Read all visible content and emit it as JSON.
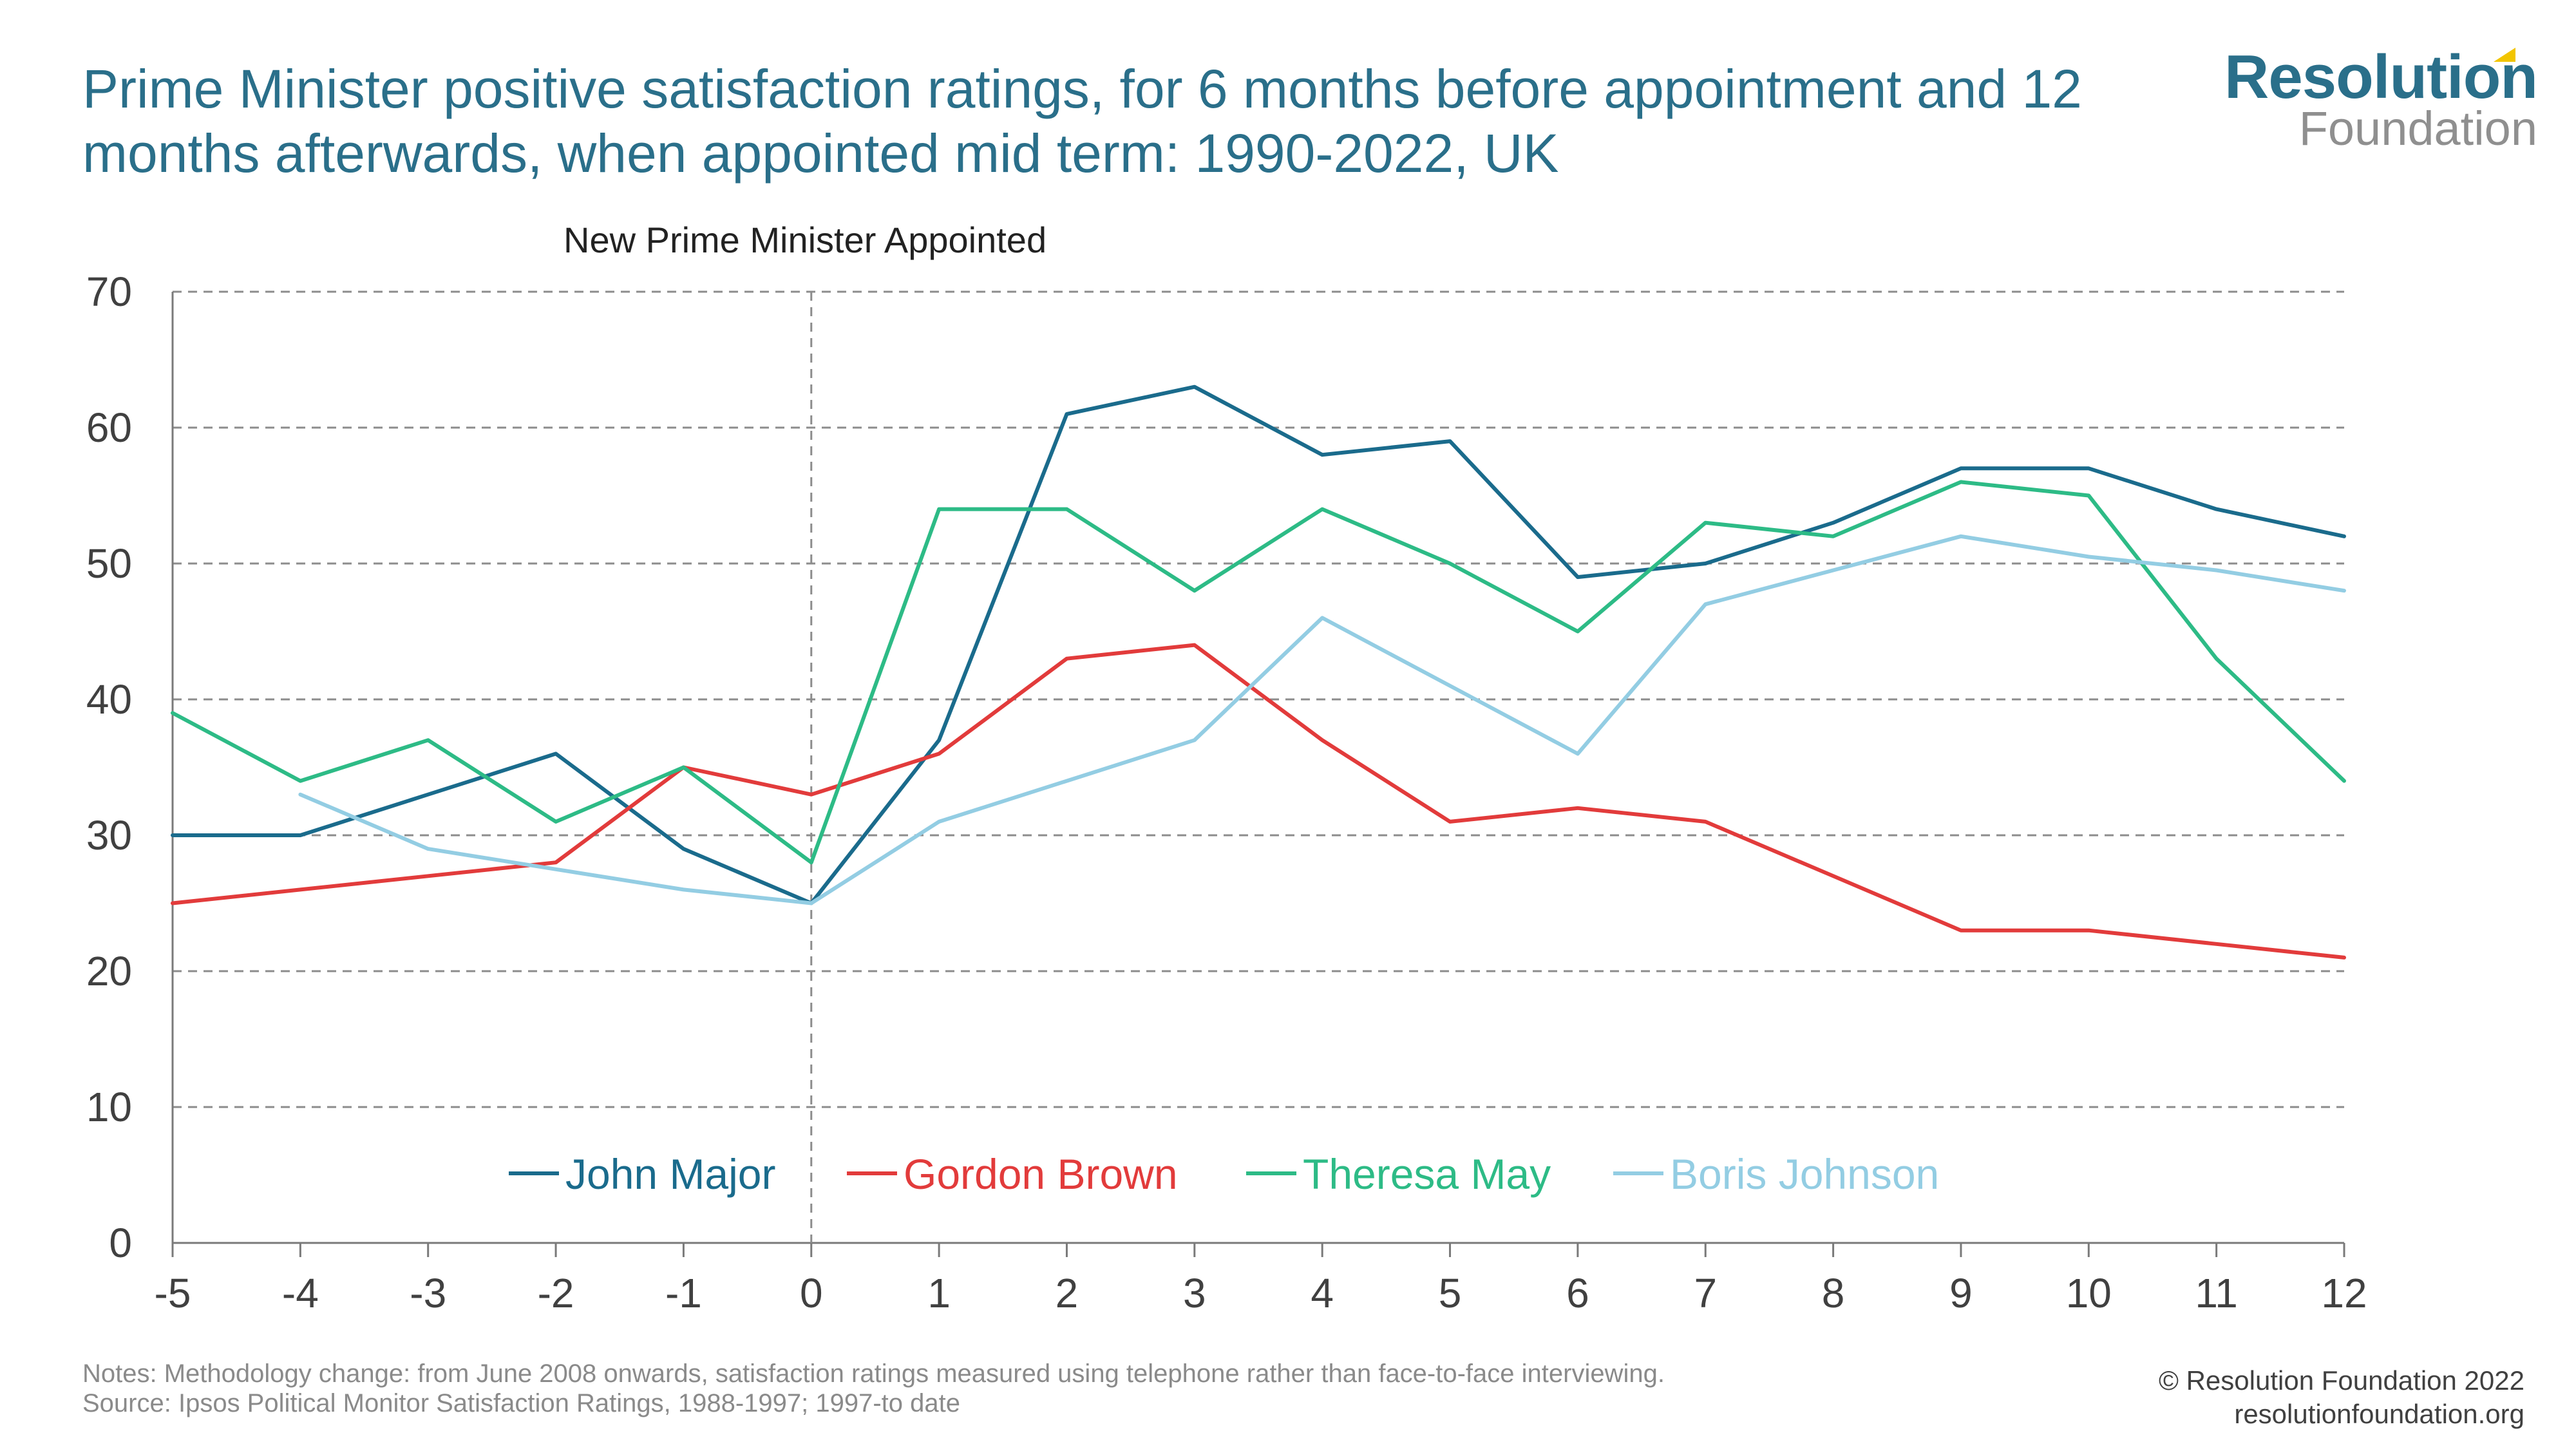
{
  "header": {
    "title_line1": "Prime Minister positive satisfaction ratings, for 6 months before appointment and 12",
    "title_line2": "months afterwards, when appointed mid term: 1990-2022, UK"
  },
  "logo": {
    "main": "Resolution",
    "sub": "Foundation"
  },
  "chart_data": {
    "type": "line",
    "annotation": "New Prime Minister Appointed",
    "annotation_x": 0,
    "x": [
      -5,
      -4,
      -3,
      -2,
      -1,
      0,
      1,
      2,
      3,
      4,
      5,
      6,
      7,
      8,
      9,
      10,
      11,
      12
    ],
    "xlim": [
      -5,
      12
    ],
    "ylim": [
      0,
      70
    ],
    "yticks": [
      0,
      10,
      20,
      30,
      40,
      50,
      60,
      70
    ],
    "grid": true,
    "legend_position": "bottom-left",
    "series": [
      {
        "name": "John Major",
        "color": "#1a6b8c",
        "values": [
          30,
          30,
          33,
          36,
          29,
          25,
          37,
          61,
          63,
          58,
          59,
          49,
          50,
          53,
          57,
          57,
          54,
          52
        ]
      },
      {
        "name": "Gordon Brown",
        "color": "#e23b3b",
        "values": [
          25,
          26,
          27,
          28,
          35,
          33,
          36,
          43,
          44,
          37,
          31,
          32,
          31,
          27,
          23,
          23,
          22,
          21
        ]
      },
      {
        "name": "Theresa May",
        "color": "#2dbb86",
        "values": [
          39,
          34,
          37,
          31,
          35,
          28,
          54,
          54,
          48,
          54,
          50,
          45,
          53,
          52,
          56,
          55,
          43,
          34
        ]
      },
      {
        "name": "Boris Johnson",
        "color": "#93cde3",
        "values": [
          null,
          33,
          29,
          27.5,
          26,
          25,
          31,
          34,
          37,
          46,
          41,
          36,
          47,
          49.5,
          52,
          50.5,
          49.5,
          48
        ]
      }
    ]
  },
  "footer": {
    "notes": "Notes: Methodology change: from June 2008 onwards, satisfaction ratings measured using telephone rather than face-to-face interviewing.",
    "source": "Source: Ipsos Political Monitor Satisfaction Ratings, 1988-1997; 1997-to date",
    "copyright": "© Resolution Foundation 2022",
    "website": "resolutionfoundation.org"
  }
}
